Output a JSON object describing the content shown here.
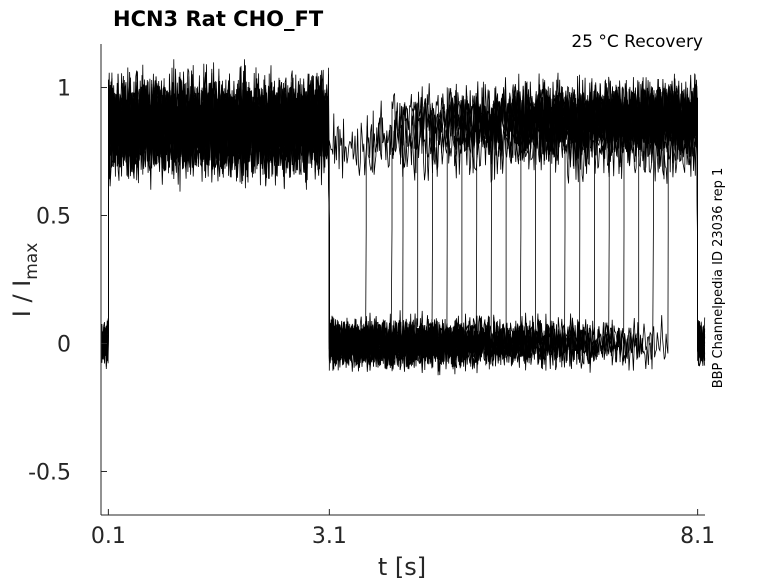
{
  "chart_data": {
    "type": "line",
    "title": "HCN3  Rat  CHO_FT",
    "condition": "25 °C  Recovery",
    "side_label": "BBP Channelpedia ID 23036 rep 1",
    "xlabel": "t [s]",
    "ylabel_main": "I / I",
    "ylabel_sub": "max",
    "xlim": [
      0.0,
      8.2
    ],
    "ylim": [
      -0.67,
      1.17
    ],
    "x_ticks": [
      0.1,
      3.1,
      8.1
    ],
    "x_tick_labels": [
      "0.1",
      "3.1",
      "8.1"
    ],
    "y_ticks": [
      -0.5,
      0,
      0.5,
      1
    ],
    "y_tick_labels": [
      "-0.5",
      "0",
      "0.5",
      "1"
    ],
    "grid": false,
    "line_color": "#000000",
    "protocol": {
      "pre_pulse_start_s": 0.1,
      "pre_pulse_end_s": 3.1,
      "pre_pulse_level": 0.87,
      "recovery_baseline_level": 0.0,
      "recovery_open_level": 0.88,
      "final_end_s": 8.1,
      "sweep_transition_times_s": [
        3.1,
        3.6,
        3.95,
        4.1,
        4.3,
        4.5,
        4.7,
        4.9,
        5.1,
        5.3,
        5.5,
        5.7,
        5.9,
        6.1,
        6.3,
        6.5,
        6.7,
        6.9,
        7.1,
        7.3,
        7.5,
        7.7
      ]
    }
  }
}
